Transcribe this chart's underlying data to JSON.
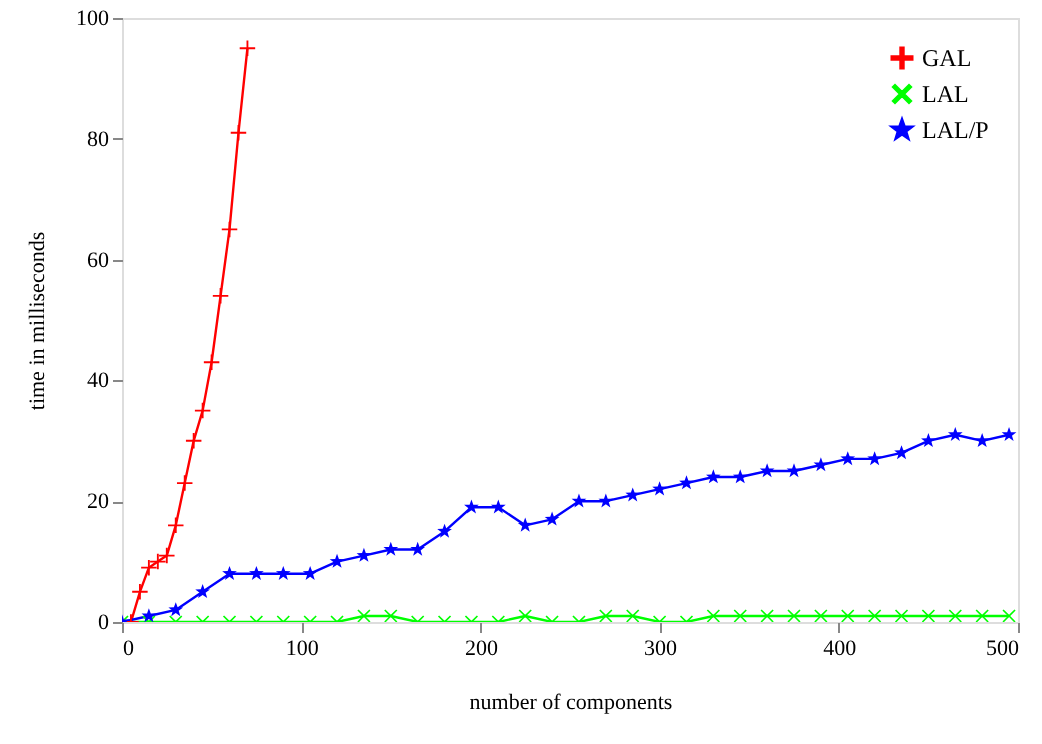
{
  "chart_data": {
    "type": "line",
    "xlabel": "number of components",
    "ylabel": "time in milliseconds",
    "xlim": [
      0,
      500
    ],
    "xticks": [
      0,
      100,
      200,
      300,
      400,
      500
    ],
    "ylim": [
      0,
      100
    ],
    "yticks": [
      0,
      20,
      40,
      60,
      80,
      100
    ],
    "grid": false,
    "legend": "top right",
    "line_style": "solid",
    "series": [
      {
        "name": "GAL",
        "color": "#ff0000",
        "marker": "plus",
        "x": [
          5,
          10,
          15,
          20,
          25,
          30,
          35,
          40,
          45,
          50,
          55,
          60,
          65,
          70
        ],
        "values": [
          0,
          5,
          9,
          10,
          11,
          16,
          23,
          30,
          35,
          43,
          54,
          65,
          81,
          95
        ]
      },
      {
        "name": "LAL",
        "color": "#00ff00",
        "marker": "cross",
        "x": [
          0,
          15,
          30,
          45,
          60,
          75,
          90,
          105,
          120,
          135,
          150,
          165,
          180,
          195,
          210,
          225,
          240,
          255,
          270,
          285,
          300,
          315,
          330,
          345,
          360,
          375,
          390,
          405,
          420,
          435,
          450,
          465,
          480,
          495
        ],
        "values": [
          0,
          0,
          0,
          0,
          0,
          0,
          0,
          0,
          0,
          1,
          1,
          0,
          0,
          0,
          0,
          1,
          0,
          0,
          1,
          1,
          0,
          0,
          1,
          1,
          1,
          1,
          1,
          1,
          1,
          1,
          1,
          1,
          1,
          1
        ]
      },
      {
        "name": "LAL/P",
        "color": "#0000ff",
        "marker": "star",
        "x": [
          0,
          15,
          30,
          45,
          60,
          75,
          90,
          105,
          120,
          135,
          150,
          165,
          180,
          195,
          210,
          225,
          240,
          255,
          270,
          285,
          300,
          315,
          330,
          345,
          360,
          375,
          390,
          405,
          420,
          435,
          450,
          465,
          480,
          495
        ],
        "values": [
          0,
          1,
          2,
          5,
          8,
          8,
          8,
          8,
          10,
          11,
          12,
          12,
          15,
          19,
          19,
          16,
          17,
          20,
          20,
          21,
          22,
          23,
          24,
          24,
          25,
          25,
          26,
          27,
          27,
          28,
          30,
          31,
          30,
          31
        ]
      }
    ]
  }
}
